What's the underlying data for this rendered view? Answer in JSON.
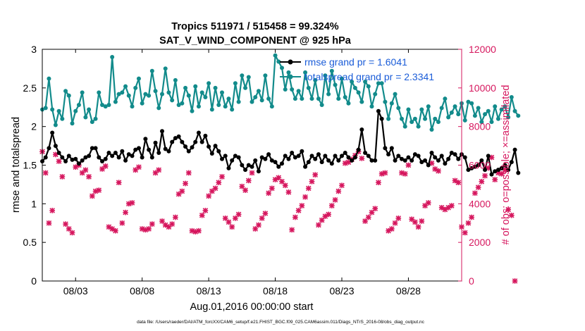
{
  "chart_data": {
    "type": "line",
    "title": "Tropics 511971 / 515458 = 99.324%",
    "subtitle": "SAT_V_WIND_COMPONENT @ 925 hPa",
    "xlabel": "Aug.01,2016 00:00:00 start",
    "ylabel_left": "rmse and totalspread",
    "ylabel_right": "# of obs: o=possible; ×=assimilated",
    "xlim": [
      0.5,
      32.0
    ],
    "ylim_left": [
      0,
      3
    ],
    "ylim_right": [
      0,
      12000
    ],
    "x_ticks": [
      3,
      8,
      13,
      18,
      23,
      28
    ],
    "x_tick_labels": [
      "08/03",
      "08/08",
      "08/13",
      "08/18",
      "08/23",
      "08/28"
    ],
    "y_ticks_left": [
      0,
      0.5,
      1,
      1.5,
      2,
      2.5,
      3
    ],
    "y_tick_labels_left": [
      "0",
      "0.5",
      "1",
      "1.5",
      "2",
      "2.5",
      "3"
    ],
    "y_ticks_right": [
      0,
      2000,
      4000,
      6000,
      8000,
      10000,
      12000
    ],
    "y_tick_labels_right": [
      "0",
      "2000",
      "4000",
      "6000",
      "8000",
      "10000",
      "12000"
    ],
    "grid": false,
    "legend_position": "top-right",
    "footnote": "data file: /Users/raeder/DAI/ATM_forcXX/CAM6_setup/f.e21.FHIST_BGC.f09_025.CAM6assim.011/Diags_NTrS_2016-08/obs_diag_output.nc",
    "colors": {
      "rmse": "#000000",
      "totalspread": "#128b8b",
      "obs": "#d6175e",
      "legend_text": "#1a5cd8",
      "right_axis": "#d6175e"
    },
    "x_start": 0.5,
    "x_step": 0.25,
    "series": [
      {
        "name": "rmse grand pr = 1.6041",
        "axis": "left",
        "marker": "*",
        "values": [
          1.55,
          1.6,
          1.72,
          1.92,
          1.75,
          1.66,
          1.6,
          1.55,
          1.62,
          1.57,
          1.58,
          1.52,
          1.56,
          1.6,
          1.62,
          1.72,
          1.72,
          1.6,
          1.55,
          1.58,
          1.66,
          1.62,
          1.66,
          1.6,
          1.68,
          1.56,
          1.64,
          1.62,
          1.7,
          1.72,
          1.6,
          1.84,
          1.7,
          1.6,
          1.79,
          1.66,
          1.94,
          1.71,
          1.68,
          1.8,
          1.85,
          1.87,
          1.8,
          1.74,
          1.68,
          1.73,
          1.8,
          1.92,
          1.8,
          1.88,
          1.74,
          1.65,
          1.75,
          1.68,
          1.58,
          1.62,
          1.46,
          1.56,
          1.62,
          1.6,
          1.5,
          1.44,
          1.5,
          1.48,
          1.56,
          1.42,
          1.6,
          1.58,
          1.64,
          1.56,
          1.54,
          1.48,
          1.52,
          1.62,
          1.58,
          1.66,
          1.6,
          1.62,
          1.68,
          1.48,
          1.54,
          1.62,
          1.58,
          1.64,
          1.54,
          1.62,
          1.56,
          1.52,
          1.62,
          1.56,
          1.62,
          1.66,
          1.6,
          1.56,
          1.6,
          1.7,
          1.96,
          1.66,
          1.62,
          1.56,
          1.56,
          2.2,
          2.1,
          1.72,
          1.64,
          1.72,
          1.56,
          1.62,
          1.58,
          1.56,
          1.6,
          1.56,
          1.64,
          1.62,
          1.54,
          1.56,
          1.5,
          1.66,
          1.6,
          1.56,
          1.62,
          1.52,
          1.58,
          1.66,
          1.64,
          1.58,
          1.64,
          1.6,
          1.44,
          1.46,
          1.48,
          1.5,
          1.56,
          1.44,
          1.62,
          1.38,
          1.42,
          1.44,
          1.46,
          1.5,
          1.44,
          1.54,
          1.7,
          1.4
        ]
      },
      {
        "name": "totalspread grand pr = 2.3341",
        "axis": "left",
        "marker": "*",
        "values": [
          2.22,
          2.24,
          2.62,
          2.22,
          2.02,
          2.2,
          2.1,
          2.46,
          2.4,
          2.04,
          2.2,
          2.28,
          2.44,
          2.12,
          2.22,
          2.06,
          2.1,
          2.44,
          2.28,
          2.26,
          2.28,
          2.9,
          2.32,
          2.42,
          2.44,
          2.52,
          2.4,
          2.26,
          2.5,
          2.62,
          2.3,
          2.42,
          2.4,
          2.72,
          2.46,
          2.24,
          2.42,
          2.75,
          2.44,
          2.34,
          2.6,
          2.28,
          2.3,
          2.5,
          2.4,
          2.2,
          2.52,
          2.26,
          2.44,
          2.38,
          2.56,
          2.22,
          2.5,
          2.28,
          2.44,
          2.26,
          2.36,
          2.22,
          2.56,
          2.32,
          2.66,
          2.5,
          2.64,
          2.32,
          2.38,
          2.46,
          2.34,
          2.66,
          2.36,
          2.26,
          2.92,
          2.84,
          2.76,
          2.48,
          2.7,
          2.48,
          2.36,
          2.46,
          2.36,
          2.7,
          2.5,
          2.36,
          2.6,
          2.36,
          2.28,
          2.66,
          2.42,
          2.72,
          2.54,
          2.36,
          2.62,
          2.38,
          2.3,
          2.58,
          2.5,
          2.44,
          2.32,
          2.58,
          2.52,
          2.26,
          2.42,
          2.56,
          2.56,
          2.32,
          2.1,
          2.3,
          2.42,
          2.24,
          2.1,
          2.0,
          2.22,
          2.06,
          2.1,
          2.0,
          2.22,
          2.1,
          2.26,
          1.96,
          2.1,
          2.06,
          2.24,
          2.36,
          2.12,
          2.18,
          2.26,
          2.16,
          2.3,
          2.08,
          2.32,
          2.3,
          2.14,
          2.24,
          2.06,
          2.16,
          2.2,
          2.06,
          2.26,
          2.1,
          2.22,
          2.26,
          2.12,
          2.38,
          2.2,
          2.14
        ]
      },
      {
        "name": "obs possible / assimilated",
        "axis": "right",
        "marker": "x",
        "values": [
          6700,
          5600,
          3000,
          3650,
          6550,
          6200,
          5400,
          2950,
          2700,
          2500,
          5900,
          6000,
          5600,
          5750,
          5400,
          4400,
          4650,
          4700,
          5800,
          5950,
          2800,
          2700,
          2600,
          5100,
          3000,
          3550,
          4000,
          4050,
          5750,
          5900,
          2700,
          2650,
          2700,
          2950,
          5600,
          5750,
          3100,
          2900,
          2800,
          2950,
          3300,
          4500,
          4650,
          5050,
          5600,
          2600,
          2550,
          2600,
          3400,
          3650,
          4400,
          4650,
          4800,
          5100,
          5400,
          3250,
          3050,
          2800,
          3250,
          3450,
          4900,
          4700,
          5200,
          5600,
          2700,
          2900,
          3250,
          3500,
          4550,
          4800,
          5250,
          5350,
          5150,
          4950,
          4600,
          2650,
          3300,
          3650,
          3900,
          4350,
          4800,
          5150,
          5500,
          2900,
          3150,
          3350,
          3450,
          3900,
          4200,
          4650,
          4950,
          6100,
          6150,
          6300,
          6500,
          6700,
          6350,
          3100,
          3300,
          3550,
          3750,
          5100,
          5550,
          5600,
          2600,
          2700,
          3000,
          3250,
          5600,
          5550,
          6000,
          3200,
          3050,
          2800,
          3100,
          3900,
          4050,
          6100,
          5800,
          5700,
          3800,
          3700,
          3800,
          3900,
          5200,
          5100,
          2800,
          2500,
          3000,
          3300,
          4550,
          4850,
          5150,
          5450,
          5850,
          6400,
          5250,
          5600,
          5550,
          5750,
          3700,
          3400,
          0
        ]
      }
    ],
    "legend": [
      "rmse grand pr = 1.6041",
      "totalspread grand pr = 2.3341"
    ]
  }
}
